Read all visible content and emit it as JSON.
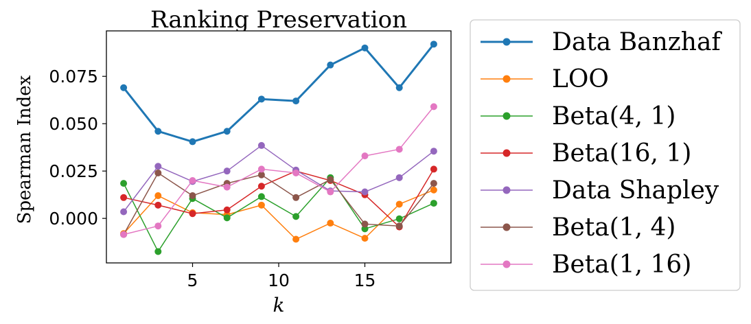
{
  "chart_data": {
    "type": "line",
    "title": "Ranking Preservation",
    "xlabel": "k",
    "ylabel": "Spearman Index",
    "xlim": [
      0.0,
      20.0
    ],
    "ylim": [
      -0.0235,
      0.099
    ],
    "xticks": [
      5,
      10,
      15
    ],
    "yticks": [
      0.0,
      0.025,
      0.05,
      0.075
    ],
    "ytick_labels": [
      "0.000",
      "0.025",
      "0.050",
      "0.075"
    ],
    "x": [
      1,
      3,
      5,
      7,
      9,
      11,
      13,
      15,
      17,
      19
    ],
    "legend_position": "outside-right",
    "series": [
      {
        "name": "Data Banzhaf",
        "color": "#1f77b4",
        "emphasis": true,
        "values": [
          0.069,
          0.046,
          0.0405,
          0.046,
          0.063,
          0.062,
          0.081,
          0.09,
          0.069,
          0.092
        ]
      },
      {
        "name": "LOO",
        "color": "#ff7f0e",
        "values": [
          -0.008,
          0.012,
          0.003,
          0.002,
          0.007,
          -0.011,
          -0.0025,
          -0.0105,
          0.0075,
          0.015
        ]
      },
      {
        "name": "Beta(4, 1)",
        "color": "#2ca02c",
        "values": [
          0.0185,
          -0.0175,
          0.0105,
          0.0003,
          0.0115,
          0.001,
          0.0215,
          -0.0055,
          -0.0002,
          0.008
        ]
      },
      {
        "name": "Beta(16, 1)",
        "color": "#d62728",
        "values": [
          0.011,
          0.007,
          0.0025,
          0.0045,
          0.017,
          0.025,
          0.02,
          0.0125,
          -0.0045,
          0.026
        ]
      },
      {
        "name": "Data Shapley",
        "color": "#9467bd",
        "values": [
          0.0035,
          0.0275,
          0.0195,
          0.025,
          0.0385,
          0.0255,
          0.0145,
          0.014,
          0.0215,
          0.0355
        ]
      },
      {
        "name": "Beta(1, 4)",
        "color": "#8c564b",
        "values": [
          -0.0085,
          0.024,
          0.012,
          0.0185,
          0.023,
          0.011,
          0.0205,
          -0.003,
          -0.004,
          0.0185
        ]
      },
      {
        "name": "Beta(1, 16)",
        "color": "#e377c2",
        "values": [
          -0.0085,
          -0.004,
          0.02,
          0.0165,
          0.026,
          0.024,
          0.014,
          0.033,
          0.0365,
          0.059
        ]
      }
    ]
  }
}
